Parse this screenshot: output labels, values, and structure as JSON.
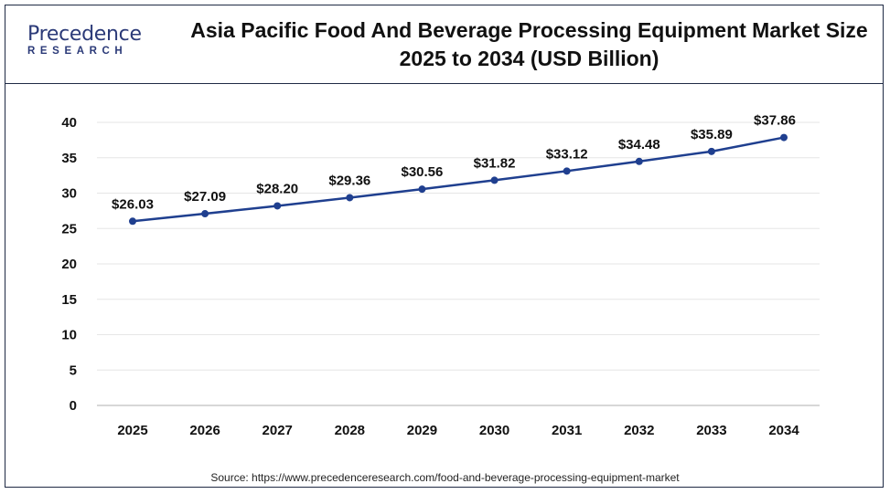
{
  "logo": {
    "name": "Precedence",
    "subtitle": "RESEARCH"
  },
  "title": "Asia Pacific Food And Beverage Processing Equipment Market Size 2025 to 2034 (USD Billion)",
  "source": "Source: https://www.precedenceresearch.com/food-and-beverage-processing-equipment-market",
  "colors": {
    "line": "#1f3f8f",
    "frame": "#1f2a44",
    "grid": "#e6e6e6"
  },
  "chart_data": {
    "type": "line",
    "title": "Asia Pacific Food And Beverage Processing Equipment Market Size 2025 to 2034 (USD Billion)",
    "categories": [
      "2025",
      "2026",
      "2027",
      "2028",
      "2029",
      "2030",
      "2031",
      "2032",
      "2033",
      "2034"
    ],
    "values": [
      26.03,
      27.09,
      28.2,
      29.36,
      30.56,
      31.82,
      33.12,
      34.48,
      35.89,
      37.86
    ],
    "data_labels": [
      "$26.03",
      "$27.09",
      "$28.20",
      "$29.36",
      "$30.56",
      "$31.82",
      "$33.12",
      "$34.48",
      "$35.89",
      "$37.86"
    ],
    "yticks": [
      "0",
      "5",
      "10",
      "15",
      "20",
      "25",
      "30",
      "35",
      "40"
    ],
    "ylim": [
      0,
      40
    ],
    "grid": true,
    "legend": "none"
  }
}
